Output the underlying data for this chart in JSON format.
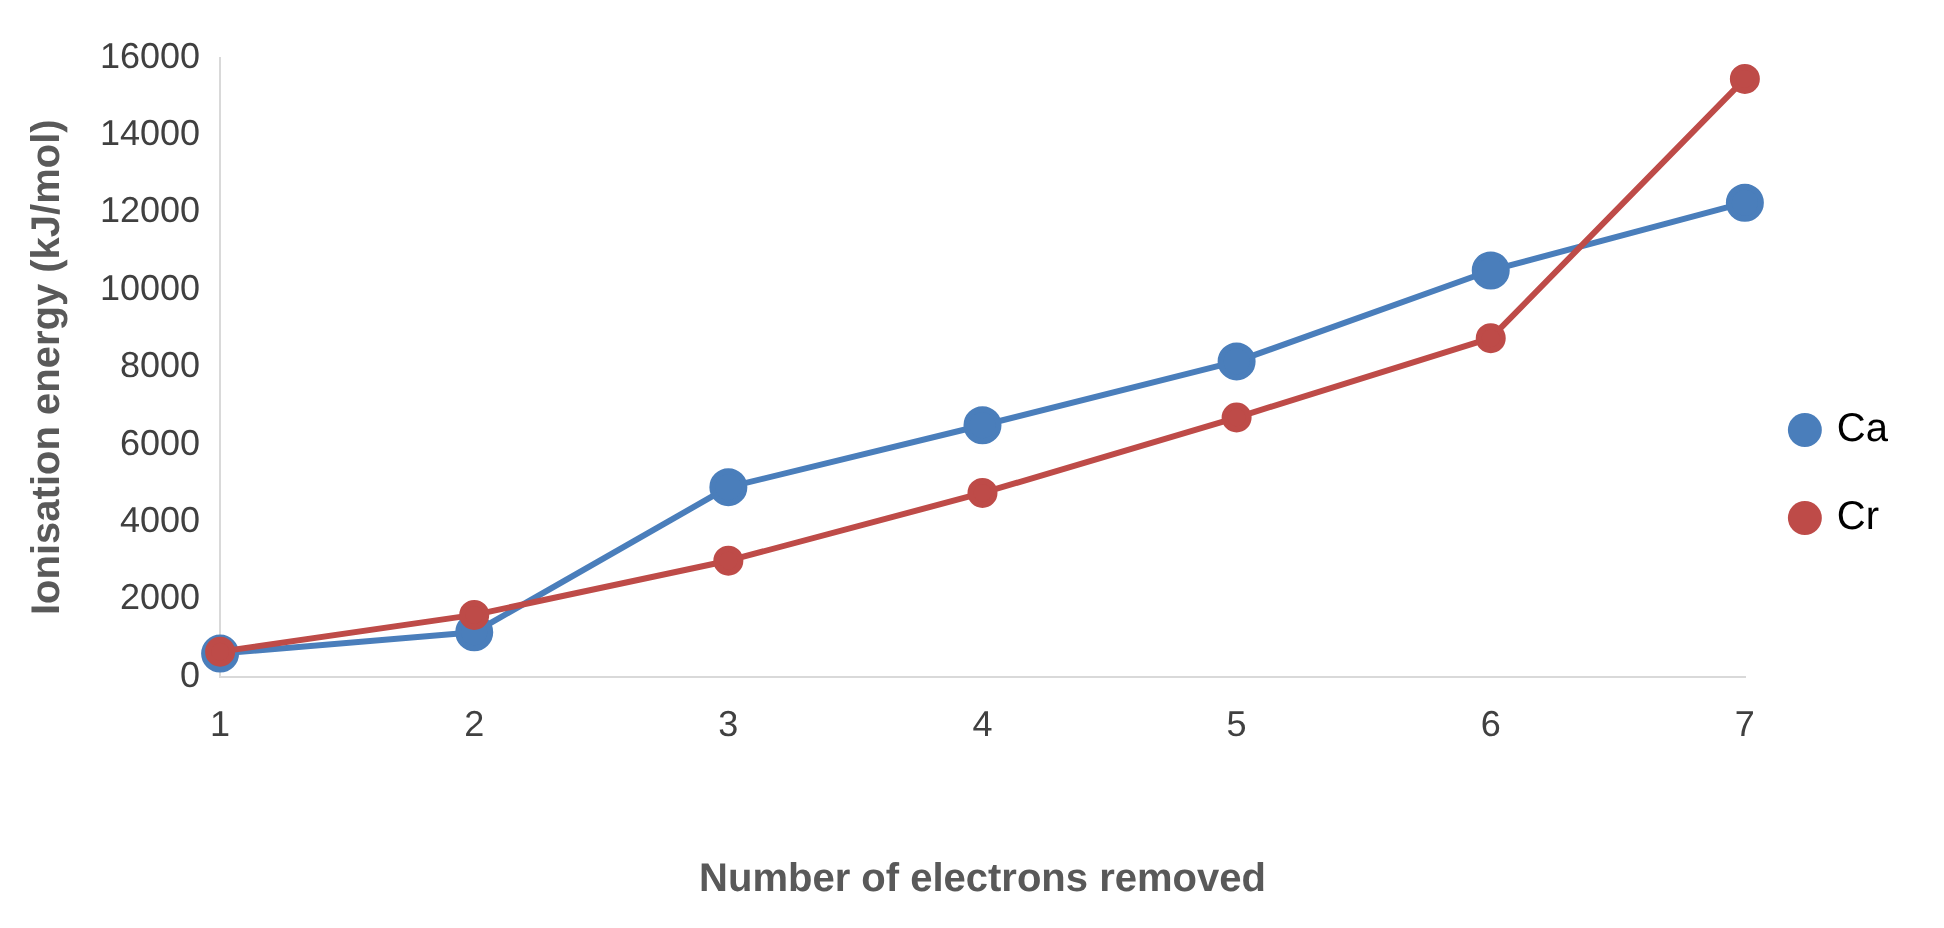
{
  "chart_data": {
    "type": "line",
    "xlabel": "Number of electrons removed",
    "ylabel": "Ionisation energy (kJ/mol)",
    "categories": [
      "1",
      "2",
      "3",
      "4",
      "5",
      "6",
      "7"
    ],
    "series": [
      {
        "name": "Ca",
        "color": "#4a7ebb",
        "values": [
          600,
          1150,
          4900,
          6500,
          8150,
          10500,
          12250
        ]
      },
      {
        "name": "Cr",
        "color": "#be4b48",
        "values": [
          650,
          1600,
          3000,
          4750,
          6700,
          8750,
          15450
        ]
      }
    ],
    "ylim": [
      0,
      16000
    ],
    "yticks": [
      0,
      2000,
      4000,
      6000,
      8000,
      10000,
      12000,
      14000,
      16000
    ],
    "grid": false,
    "legend": "right",
    "marker": "circle",
    "line_style": "solid"
  }
}
